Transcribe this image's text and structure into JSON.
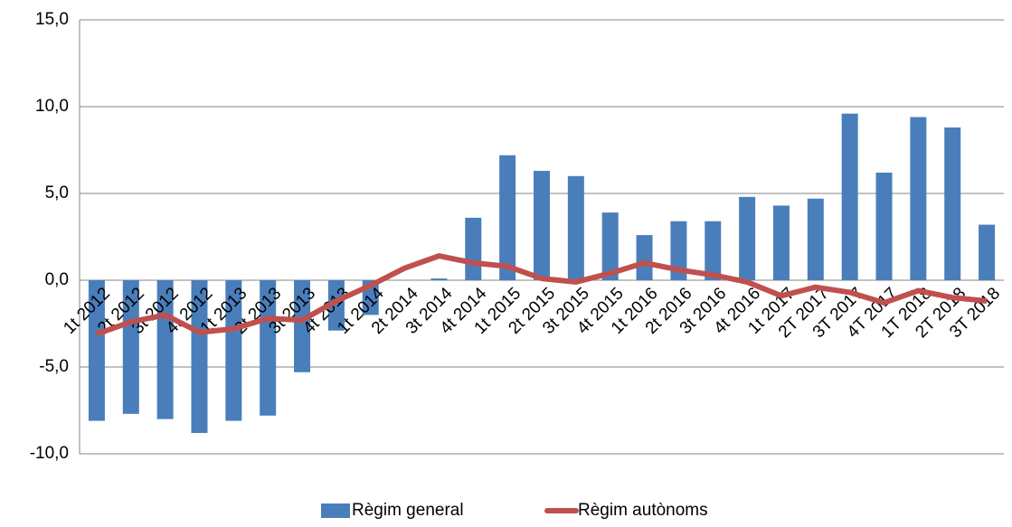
{
  "chart_data": {
    "type": "bar-line",
    "categories": [
      "1t 2012",
      "2t 2012",
      "3t 2012",
      "4t 2012",
      "1t 2013",
      "2t 2013",
      "3t 2013",
      "4t 2013",
      "1t 2014",
      "2t 2014",
      "3t 2014",
      "4t 2014",
      "1t 2015",
      "2t 2015",
      "3t 2015",
      "4t 2015",
      "1t 2016",
      "2t 2016",
      "3t 2016",
      "4t 2016",
      "1t 2017",
      "2T 2017",
      "3T 2017",
      "4T 2017",
      "1T 2018",
      "2T 2018",
      "3T 2018"
    ],
    "series": [
      {
        "name": "Règim general",
        "type": "bar",
        "color": "#4a7ebb",
        "values": [
          -8.1,
          -7.7,
          -8.0,
          -8.8,
          -8.1,
          -7.8,
          -5.3,
          -2.9,
          -2.0,
          0.0,
          0.1,
          3.6,
          7.2,
          6.3,
          6.0,
          3.9,
          2.6,
          3.4,
          3.4,
          4.8,
          4.3,
          4.7,
          9.6,
          6.2,
          9.4,
          8.8,
          3.2
        ]
      },
      {
        "name": "Règim autònoms",
        "type": "line",
        "color": "#c0504d",
        "values": [
          -3.1,
          -2.4,
          -2.0,
          -3.0,
          -2.8,
          -2.2,
          -2.3,
          -1.2,
          -0.3,
          0.7,
          1.4,
          1.0,
          0.8,
          0.1,
          -0.1,
          0.4,
          1.0,
          0.6,
          0.3,
          -0.1,
          -0.9,
          -0.4,
          -0.7,
          -1.3,
          -0.6,
          -1.0,
          -1.2
        ]
      }
    ],
    "ylim": [
      -10,
      15
    ],
    "yticks": [
      {
        "value": -10,
        "label": "-10,0"
      },
      {
        "value": -5,
        "label": "-5,0"
      },
      {
        "value": 0,
        "label": "0,0"
      },
      {
        "value": 5,
        "label": "5,0"
      },
      {
        "value": 10,
        "label": "10,0"
      },
      {
        "value": 15,
        "label": "15,0"
      }
    ],
    "grid": true,
    "legend": "bottom"
  }
}
